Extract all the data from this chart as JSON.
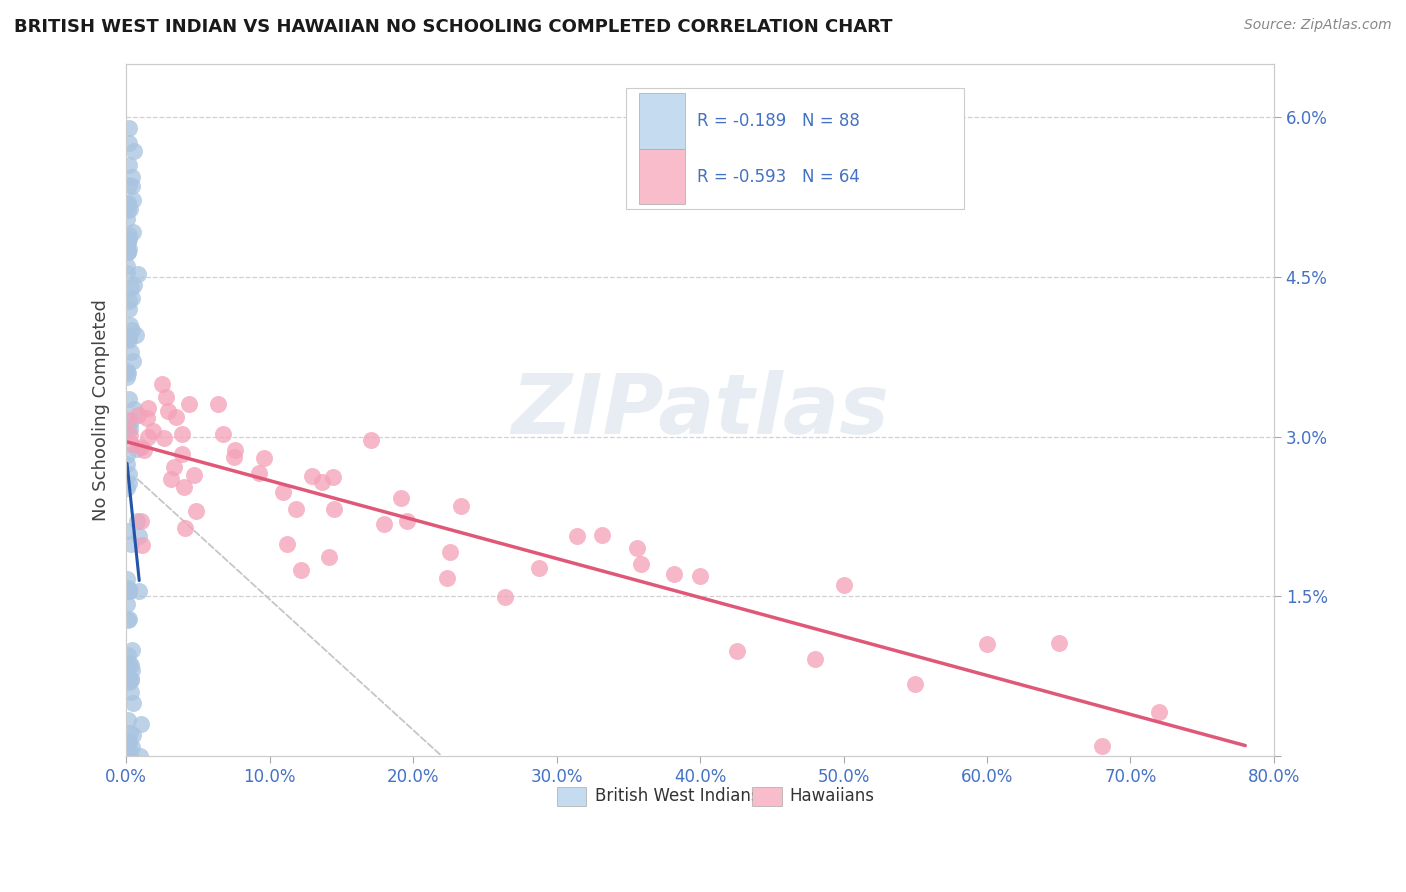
{
  "title": "BRITISH WEST INDIAN VS HAWAIIAN NO SCHOOLING COMPLETED CORRELATION CHART",
  "source_text": "Source: ZipAtlas.com",
  "ylabel": "No Schooling Completed",
  "xlim": [
    0,
    0.8
  ],
  "ylim": [
    0,
    0.065
  ],
  "x_tick_vals": [
    0.0,
    0.1,
    0.2,
    0.3,
    0.4,
    0.5,
    0.6,
    0.7,
    0.8
  ],
  "y_tick_vals": [
    0.0,
    0.015,
    0.03,
    0.045,
    0.06
  ],
  "y_right_labels": [
    "",
    "1.5%",
    "3.0%",
    "4.5%",
    "6.0%"
  ],
  "R_british": -0.189,
  "N_british": 88,
  "R_hawaiian": -0.593,
  "N_hawaiian": 64,
  "british_color": "#a8c4e0",
  "hawaiian_color": "#f4a0b8",
  "british_line_color": "#2255aa",
  "hawaiian_line_color": "#e05878",
  "legend_box_color_british": "#c5dcf0",
  "legend_box_color_hawaiian": "#f8bccb",
  "watermark_text": "ZIPatlas",
  "grid_color": "#cccccc",
  "title_color": "#1a1a1a",
  "tick_color": "#4472c4",
  "source_color": "#888888"
}
